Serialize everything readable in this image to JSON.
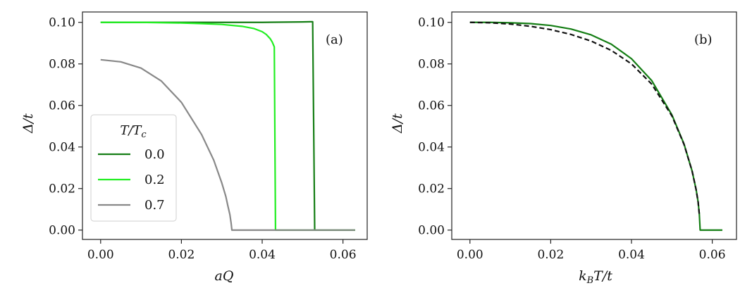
{
  "chart_data": [
    {
      "type": "line",
      "panel_label": "(a)",
      "xlabel": "aQ",
      "ylabel": "Δ/t",
      "xlim": [
        -0.0045,
        0.066
      ],
      "ylim": [
        -0.0045,
        0.105
      ],
      "xticks": [
        "0.00",
        "0.02",
        "0.04",
        "0.06"
      ],
      "yticks": [
        "0.00",
        "0.02",
        "0.04",
        "0.06",
        "0.08",
        "0.10"
      ],
      "legend": {
        "title": "T/Tc",
        "placement": "lower-left"
      },
      "series": [
        {
          "name": "0.0",
          "color": "#157e15",
          "x": [
            0,
            0.01,
            0.02,
            0.03,
            0.04,
            0.05,
            0.052,
            0.0525,
            0.053,
            0.063
          ],
          "y": [
            0.1,
            0.1,
            0.1,
            0.1,
            0.1,
            0.1002,
            0.1003,
            0.1003,
            0.0,
            0.0
          ]
        },
        {
          "name": "0.2",
          "color": "#22ee22",
          "x": [
            0,
            0.01,
            0.02,
            0.025,
            0.03,
            0.035,
            0.038,
            0.04,
            0.041,
            0.042,
            0.0425,
            0.043,
            0.0433,
            0.063
          ],
          "y": [
            0.1,
            0.1,
            0.0997,
            0.0994,
            0.099,
            0.0981,
            0.097,
            0.0955,
            0.0942,
            0.0921,
            0.0905,
            0.0882,
            0.0,
            0.0
          ]
        },
        {
          "name": "0.7",
          "color": "#888888",
          "x": [
            0,
            0.005,
            0.01,
            0.015,
            0.02,
            0.025,
            0.028,
            0.03,
            0.031,
            0.0315,
            0.032,
            0.0323,
            0.0325,
            0.063
          ],
          "y": [
            0.082,
            0.081,
            0.078,
            0.0718,
            0.0615,
            0.046,
            0.0337,
            0.0227,
            0.0162,
            0.0117,
            0.0075,
            0.0035,
            0.0,
            0.0
          ]
        }
      ]
    },
    {
      "type": "line",
      "panel_label": "(b)",
      "xlabel": "kBT/t",
      "ylabel": "Δ/t",
      "xlim": [
        -0.0045,
        0.066
      ],
      "ylim": [
        -0.0045,
        0.105
      ],
      "xticks": [
        "0.00",
        "0.02",
        "0.04",
        "0.06"
      ],
      "yticks": [
        "0.00",
        "0.02",
        "0.04",
        "0.06",
        "0.08",
        "0.10"
      ],
      "series": [
        {
          "color": "#157e15",
          "dash": "solid",
          "x": [
            0,
            0.005,
            0.01,
            0.015,
            0.02,
            0.025,
            0.03,
            0.035,
            0.04,
            0.045,
            0.05,
            0.053,
            0.055,
            0.056,
            0.0565,
            0.0568,
            0.057,
            0.0625
          ],
          "y": [
            0.1,
            0.1,
            0.0998,
            0.0994,
            0.0985,
            0.0968,
            0.094,
            0.0895,
            0.0825,
            0.072,
            0.0555,
            0.0415,
            0.0285,
            0.0195,
            0.0135,
            0.0075,
            0.0,
            0.0
          ]
        },
        {
          "color": "#111111",
          "dash": "dashed",
          "x": [
            0,
            0.005,
            0.01,
            0.015,
            0.02,
            0.025,
            0.03,
            0.035,
            0.04,
            0.045,
            0.05,
            0.053,
            0.055,
            0.056,
            0.0565,
            0.0568
          ],
          "y": [
            0.1,
            0.0998,
            0.0992,
            0.0981,
            0.0965,
            0.0942,
            0.091,
            0.0865,
            0.08,
            0.0703,
            0.055,
            0.0413,
            0.0285,
            0.0195,
            0.0135,
            0.0075
          ]
        }
      ]
    }
  ]
}
